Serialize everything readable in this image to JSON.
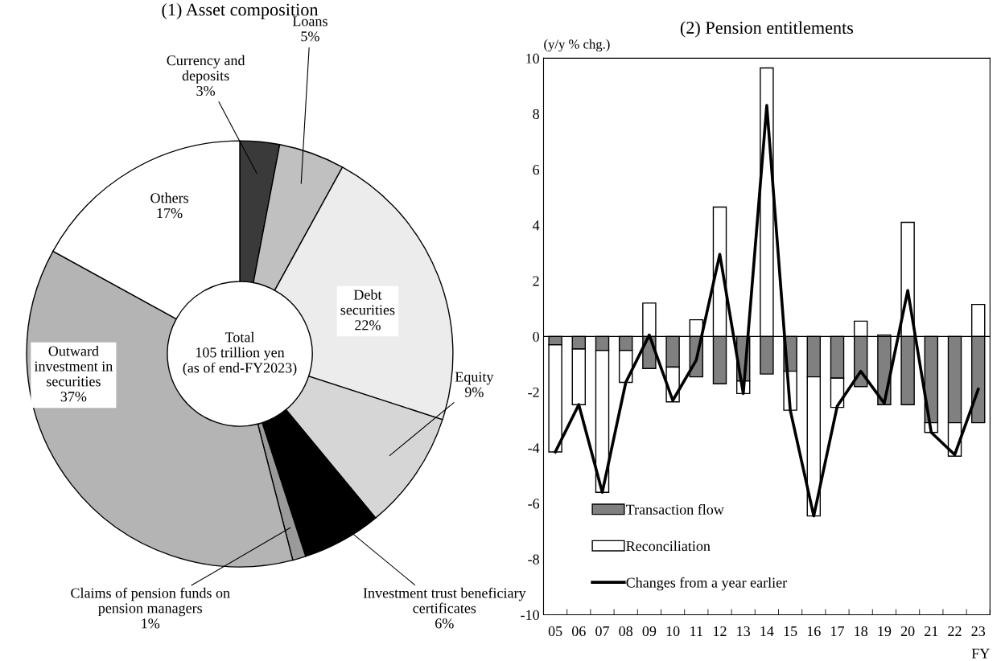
{
  "chart_data": [
    {
      "type": "donut",
      "title": "(1) Asset composition",
      "categories": [
        "Currency and deposits",
        "Loans",
        "Debt securities",
        "Equity",
        "Investment trust beneficiary certificates",
        "Claims of pension funds on pension managers",
        "Outward investment in securities",
        "Others"
      ],
      "values": [
        3,
        5,
        22,
        9,
        6,
        1,
        37,
        17
      ],
      "value_labels": [
        "3%",
        "5%",
        "22%",
        "9%",
        "6%",
        "1%",
        "37%",
        "17%"
      ],
      "colors": [
        "#3a3a3a",
        "#c0c0c0",
        "#ececec",
        "#d6d6d6",
        "#000000",
        "#9a9a9a",
        "#b4b4b4",
        "#ffffff"
      ],
      "annotations": [
        "Total\n105 trillion yen\n(as of end-FY2023)"
      ]
    },
    {
      "type": "bar",
      "title": "(2) Pension entitlements",
      "stacked": true,
      "ylabel": "(y/y % chg.)",
      "xlabel": "FY",
      "categories": [
        "05",
        "06",
        "07",
        "08",
        "09",
        "10",
        "11",
        "12",
        "13",
        "14",
        "15",
        "16",
        "17",
        "18",
        "19",
        "20",
        "21",
        "22",
        "23"
      ],
      "series": [
        {
          "name": "Transaction flow",
          "color": "#808080",
          "values": [
            -0.3,
            -0.45,
            -0.5,
            -0.5,
            -1.15,
            -1.1,
            -1.45,
            -1.7,
            -1.6,
            -1.35,
            -1.25,
            -1.45,
            -1.5,
            -1.8,
            -2.45,
            -2.45,
            -3.1,
            -3.1,
            -3.1
          ]
        },
        {
          "name": "Reconciliation",
          "color": "#ffffff",
          "values": [
            -3.85,
            -2.0,
            -5.1,
            -1.15,
            1.2,
            -1.25,
            0.6,
            4.65,
            -0.45,
            9.65,
            -1.4,
            -5.0,
            -1.05,
            0.55,
            0.05,
            4.1,
            -0.35,
            -1.2,
            1.15
          ]
        },
        {
          "name": "Changes from a year earlier",
          "type": "line",
          "color": "#000000",
          "values": [
            -4.15,
            -2.45,
            -5.6,
            -1.65,
            0.05,
            -2.3,
            -0.85,
            2.95,
            -2.05,
            8.3,
            -2.65,
            -6.45,
            -2.5,
            -1.25,
            -2.4,
            1.65,
            -3.45,
            -4.25,
            -1.9
          ]
        }
      ],
      "ylim": [
        -10,
        10
      ],
      "yticks": [
        -10,
        -8,
        -6,
        -4,
        -2,
        0,
        2,
        4,
        6,
        8,
        10
      ],
      "ref_lines": [
        {
          "axis": "y",
          "value": 0,
          "color": "#000000"
        }
      ],
      "legend": "bottom left",
      "grid": false
    }
  ]
}
